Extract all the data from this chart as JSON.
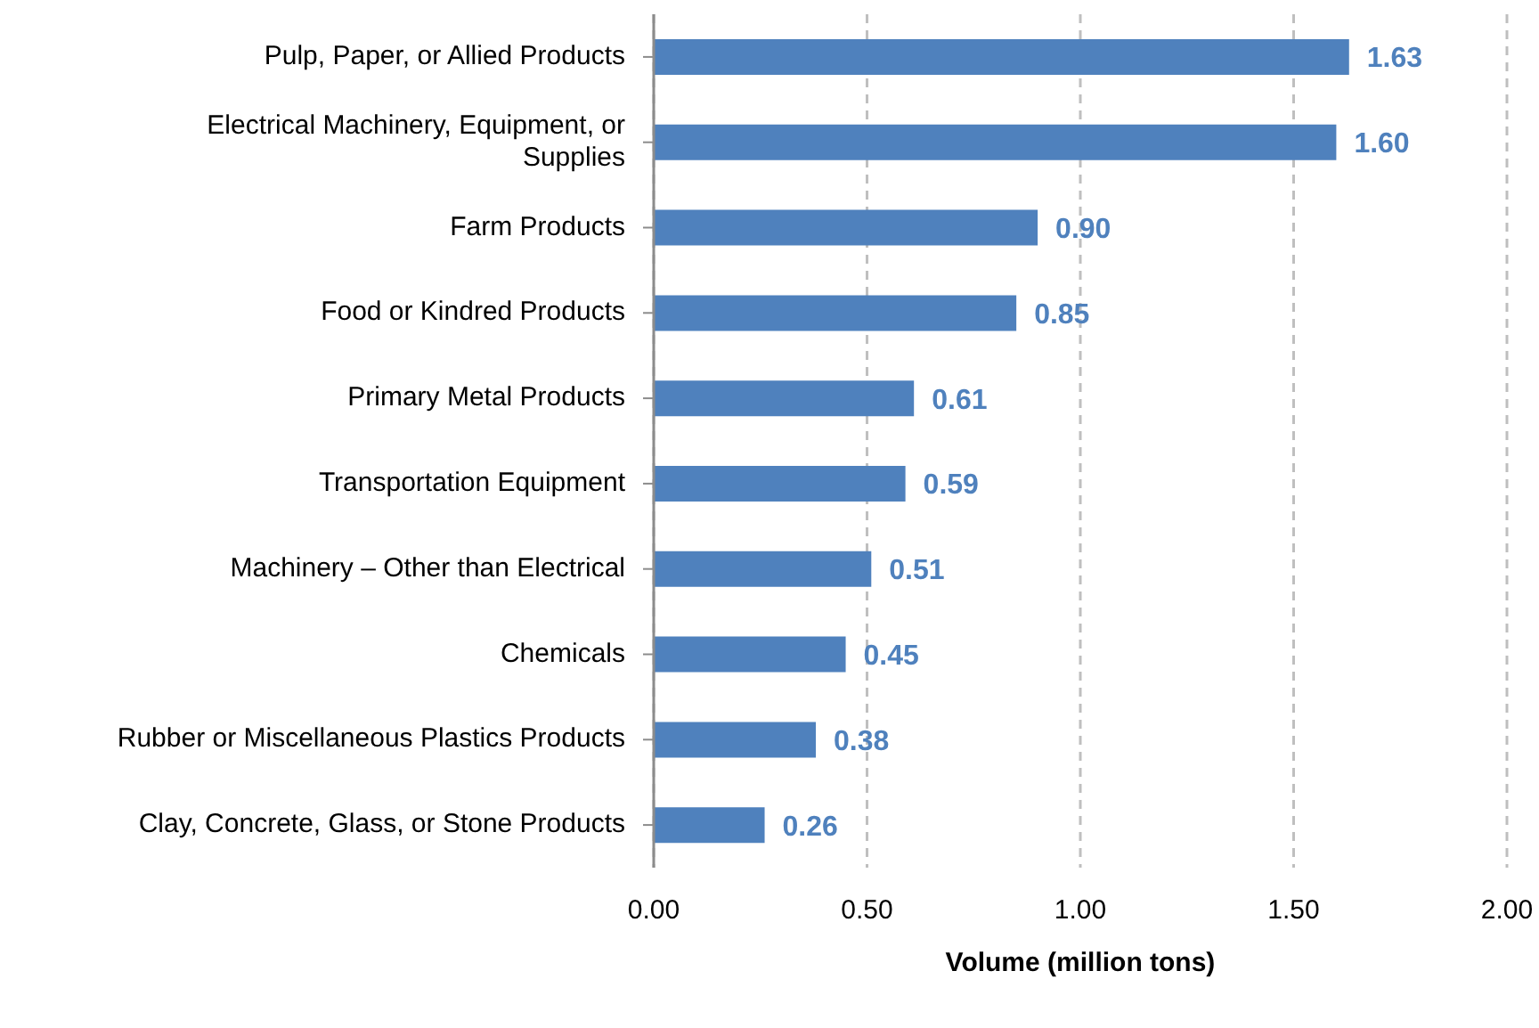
{
  "chart_data": {
    "type": "bar",
    "orientation": "horizontal",
    "xlabel": "Volume (million tons)",
    "categories": [
      "Pulp, Paper, or Allied Products",
      "Electrical Machinery, Equipment, or Supplies",
      "Farm Products",
      "Food or Kindred Products",
      "Primary Metal Products",
      "Transportation Equipment",
      "Machinery – Other than Electrical",
      "Chemicals",
      "Rubber or Miscellaneous Plastics Products",
      "Clay, Concrete, Glass, or Stone Products"
    ],
    "values": [
      1.63,
      1.6,
      0.9,
      0.85,
      0.61,
      0.59,
      0.51,
      0.45,
      0.38,
      0.26
    ],
    "value_labels": [
      "1.63",
      "1.60",
      "0.90",
      "0.85",
      "0.61",
      "0.59",
      "0.51",
      "0.45",
      "0.38",
      "0.26"
    ],
    "color": "#4f81bd",
    "xlim": [
      0,
      2
    ],
    "xticks": [
      {
        "value": 0,
        "label": "0.00"
      },
      {
        "value": 0.5,
        "label": "0.50"
      },
      {
        "value": 1,
        "label": "1.00"
      },
      {
        "value": 1.5,
        "label": "1.50"
      },
      {
        "value": 2,
        "label": "2.00"
      }
    ],
    "grid": "x",
    "legend": false
  }
}
